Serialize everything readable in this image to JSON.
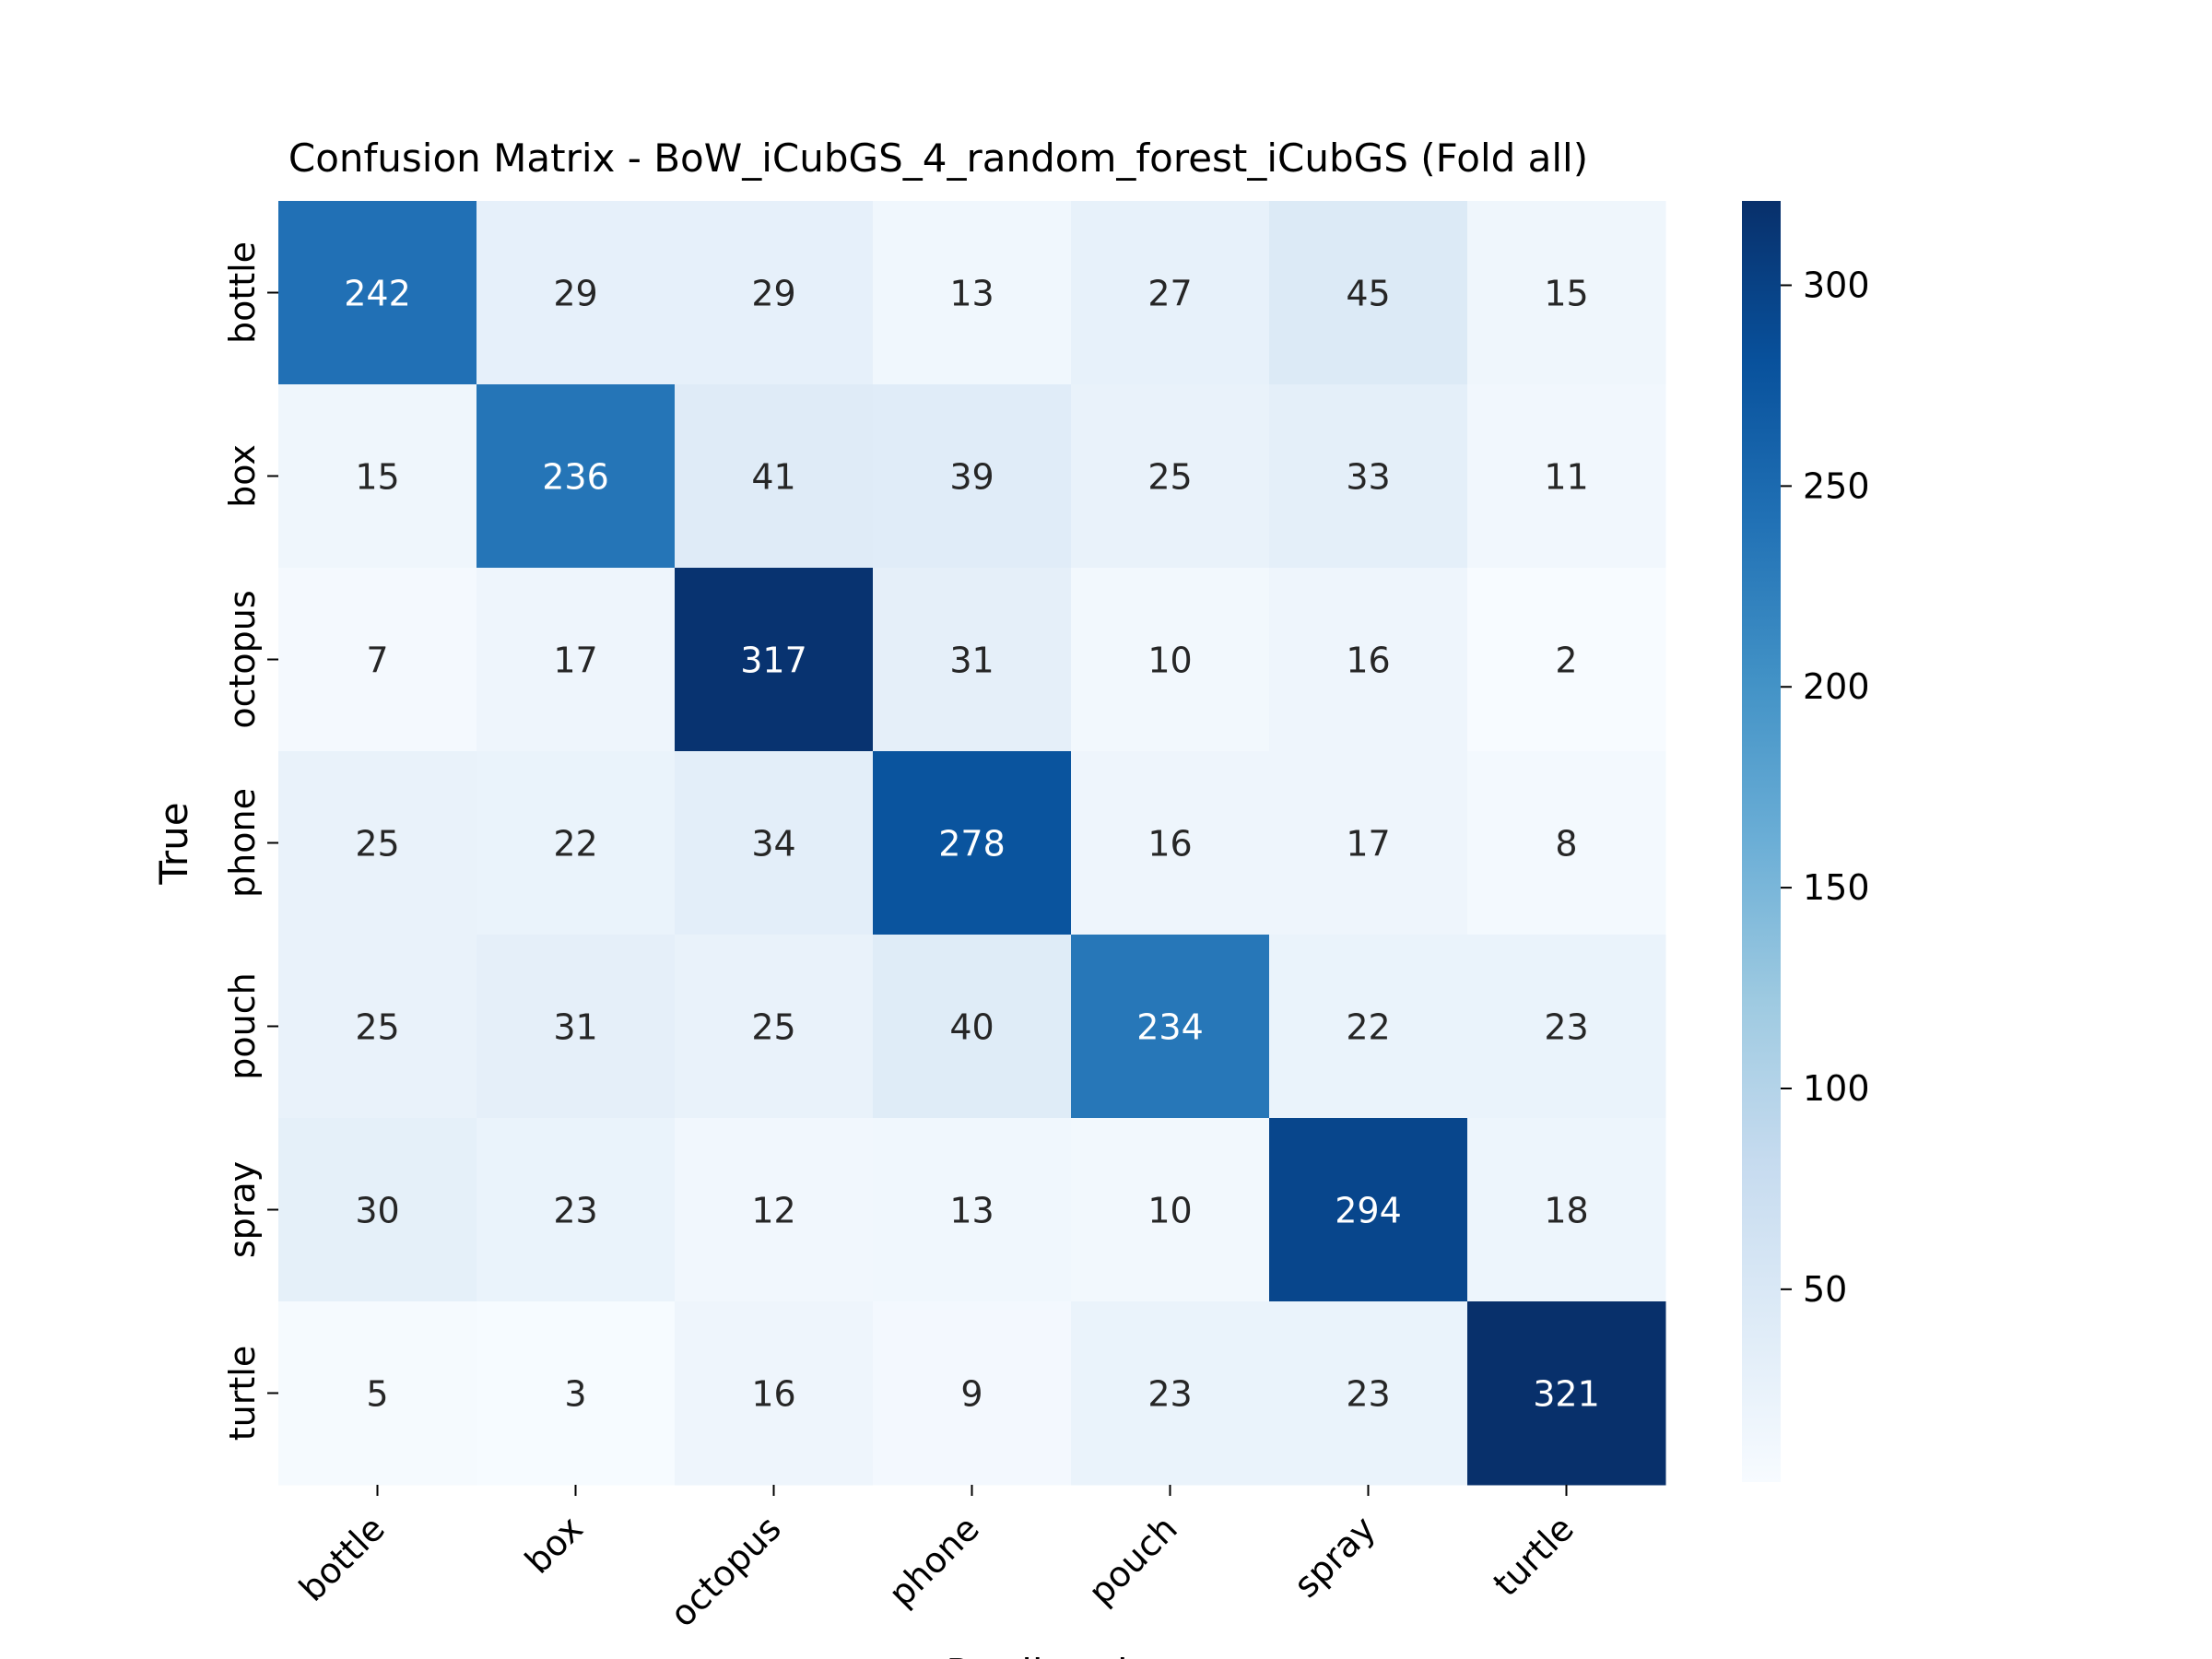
{
  "chart_data": {
    "type": "heatmap",
    "title": "Confusion Matrix - BoW_iCubGS_4_random_forest_iCubGS (Fold all)",
    "xlabel": "Predicted",
    "ylabel": "True",
    "x_categories": [
      "bottle",
      "box",
      "octopus",
      "phone",
      "pouch",
      "spray",
      "turtle"
    ],
    "y_categories": [
      "bottle",
      "box",
      "octopus",
      "phone",
      "pouch",
      "spray",
      "turtle"
    ],
    "values": [
      [
        242,
        29,
        29,
        13,
        27,
        45,
        15
      ],
      [
        15,
        236,
        41,
        39,
        25,
        33,
        11
      ],
      [
        7,
        17,
        317,
        31,
        10,
        16,
        2
      ],
      [
        25,
        22,
        34,
        278,
        16,
        17,
        8
      ],
      [
        25,
        31,
        25,
        40,
        234,
        22,
        23
      ],
      [
        30,
        23,
        12,
        13,
        10,
        294,
        18
      ],
      [
        5,
        3,
        16,
        9,
        23,
        23,
        321
      ]
    ],
    "colormap": "Blues",
    "vmin": 2,
    "vmax": 321,
    "colorbar_ticks": [
      50,
      100,
      150,
      200,
      250,
      300
    ]
  }
}
